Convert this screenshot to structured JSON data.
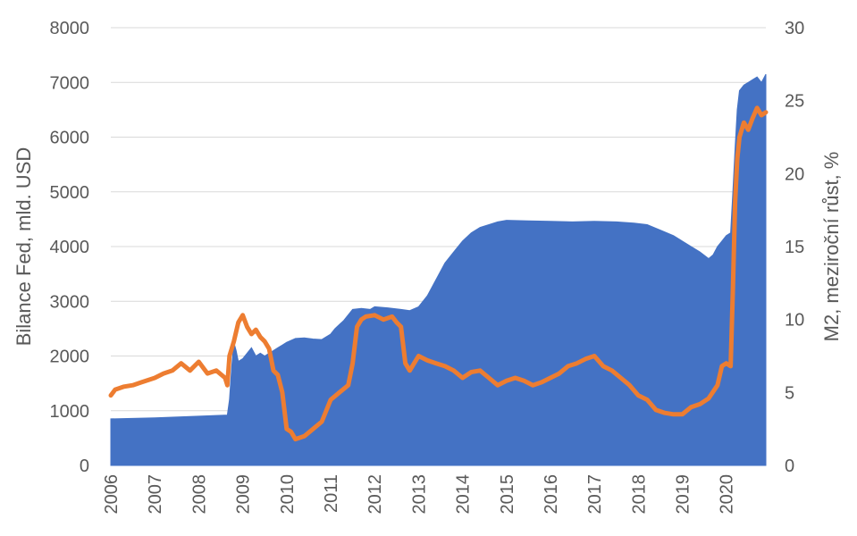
{
  "chart_data": {
    "type": "area+line",
    "title": "",
    "xlabel": "",
    "ylabel": "Bilance Fed, mld. USD",
    "ylabel_right": "M2, meziroční růst, %",
    "grid": true,
    "legend": "none",
    "xlim": [
      2006,
      2020.9
    ],
    "ylim": [
      0,
      8000
    ],
    "ylim_right": [
      0,
      30
    ],
    "x_ticks": [
      "2006",
      "2007",
      "2008",
      "2009",
      "2010",
      "2011",
      "2012",
      "2013",
      "2014",
      "2015",
      "2016",
      "2017",
      "2018",
      "2019",
      "2020"
    ],
    "y_ticks": [
      "0",
      "1000",
      "2000",
      "3000",
      "4000",
      "5000",
      "6000",
      "7000",
      "8000"
    ],
    "y_ticks_right": [
      "0",
      "5",
      "10",
      "15",
      "20",
      "25",
      "30"
    ],
    "colors": {
      "balance": "#4472C4",
      "m2": "#ED7D31",
      "grid": "#D9D9D9",
      "text": "#595959"
    },
    "series": [
      {
        "axis": "left",
        "style": "area",
        "x": [
          2006.0,
          2007.0,
          2008.0,
          2008.65,
          2008.7,
          2008.75,
          2008.8,
          2008.85,
          2008.9,
          2009.0,
          2009.1,
          2009.2,
          2009.3,
          2009.4,
          2009.5,
          2009.6,
          2009.7,
          2009.8,
          2009.9,
          2010.0,
          2010.2,
          2010.4,
          2010.6,
          2010.8,
          2011.0,
          2011.1,
          2011.3,
          2011.5,
          2011.7,
          2011.9,
          2012.0,
          2012.3,
          2012.6,
          2012.8,
          2013.0,
          2013.2,
          2013.4,
          2013.6,
          2013.8,
          2014.0,
          2014.2,
          2014.4,
          2014.6,
          2014.8,
          2015.0,
          2015.5,
          2016.0,
          2016.5,
          2017.0,
          2017.5,
          2017.9,
          2018.2,
          2018.5,
          2018.8,
          2019.0,
          2019.2,
          2019.4,
          2019.6,
          2019.7,
          2019.8,
          2019.9,
          2020.0,
          2020.1,
          2020.15,
          2020.2,
          2020.25,
          2020.3,
          2020.35,
          2020.4,
          2020.5,
          2020.6,
          2020.7,
          2020.8,
          2020.9
        ],
        "values": [
          850,
          870,
          900,
          920,
          1200,
          1800,
          2250,
          2100,
          1900,
          1950,
          2050,
          2150,
          2000,
          2050,
          2000,
          2050,
          2100,
          2150,
          2200,
          2250,
          2320,
          2330,
          2310,
          2300,
          2400,
          2500,
          2650,
          2850,
          2870,
          2850,
          2900,
          2880,
          2850,
          2830,
          2900,
          3100,
          3400,
          3700,
          3900,
          4100,
          4250,
          4350,
          4400,
          4450,
          4480,
          4470,
          4460,
          4450,
          4460,
          4450,
          4430,
          4400,
          4300,
          4200,
          4100,
          4000,
          3900,
          3780,
          3850,
          4000,
          4100,
          4200,
          4250,
          5000,
          5800,
          6500,
          6850,
          6900,
          6950,
          7000,
          7050,
          7100,
          7000,
          7150
        ]
      },
      {
        "axis": "right",
        "style": "line",
        "x": [
          2006.0,
          2006.1,
          2006.3,
          2006.5,
          2006.7,
          2006.9,
          2007.0,
          2007.2,
          2007.4,
          2007.6,
          2007.8,
          2007.9,
          2008.0,
          2008.2,
          2008.4,
          2008.6,
          2008.65,
          2008.7,
          2008.8,
          2008.9,
          2009.0,
          2009.1,
          2009.2,
          2009.3,
          2009.4,
          2009.5,
          2009.6,
          2009.7,
          2009.8,
          2009.9,
          2010.0,
          2010.1,
          2010.2,
          2010.4,
          2010.6,
          2010.8,
          2011.0,
          2011.2,
          2011.4,
          2011.5,
          2011.6,
          2011.7,
          2011.8,
          2012.0,
          2012.2,
          2012.4,
          2012.5,
          2012.6,
          2012.7,
          2012.8,
          2012.9,
          2013.0,
          2013.2,
          2013.4,
          2013.6,
          2013.8,
          2014.0,
          2014.2,
          2014.4,
          2014.6,
          2014.8,
          2015.0,
          2015.2,
          2015.4,
          2015.6,
          2015.8,
          2016.0,
          2016.2,
          2016.4,
          2016.6,
          2016.8,
          2017.0,
          2017.2,
          2017.4,
          2017.6,
          2017.8,
          2018.0,
          2018.2,
          2018.4,
          2018.6,
          2018.8,
          2019.0,
          2019.2,
          2019.4,
          2019.6,
          2019.8,
          2019.9,
          2020.0,
          2020.1,
          2020.15,
          2020.2,
          2020.25,
          2020.3,
          2020.4,
          2020.5,
          2020.6,
          2020.7,
          2020.8,
          2020.9
        ],
        "values": [
          4.8,
          5.2,
          5.4,
          5.5,
          5.7,
          5.9,
          6.0,
          6.3,
          6.5,
          7.0,
          6.5,
          6.8,
          7.1,
          6.3,
          6.5,
          6.0,
          5.5,
          7.5,
          8.5,
          9.8,
          10.3,
          9.5,
          9.0,
          9.3,
          8.8,
          8.5,
          8.0,
          6.5,
          6.2,
          5.0,
          2.5,
          2.3,
          1.8,
          2.0,
          2.5,
          3.0,
          4.5,
          5.0,
          5.5,
          7.0,
          9.5,
          10.0,
          10.2,
          10.3,
          10.0,
          10.2,
          9.8,
          9.5,
          7.0,
          6.5,
          7.0,
          7.5,
          7.2,
          7.0,
          6.8,
          6.5,
          6.0,
          6.4,
          6.5,
          6.0,
          5.5,
          5.8,
          6.0,
          5.8,
          5.5,
          5.7,
          6.0,
          6.3,
          6.8,
          7.0,
          7.3,
          7.5,
          6.8,
          6.5,
          6.0,
          5.5,
          4.8,
          4.5,
          3.8,
          3.6,
          3.5,
          3.5,
          4.0,
          4.2,
          4.6,
          5.5,
          6.8,
          7.0,
          6.8,
          12.0,
          18.0,
          21.0,
          22.5,
          23.5,
          23.0,
          23.8,
          24.5,
          24.0,
          24.2
        ]
      }
    ]
  }
}
